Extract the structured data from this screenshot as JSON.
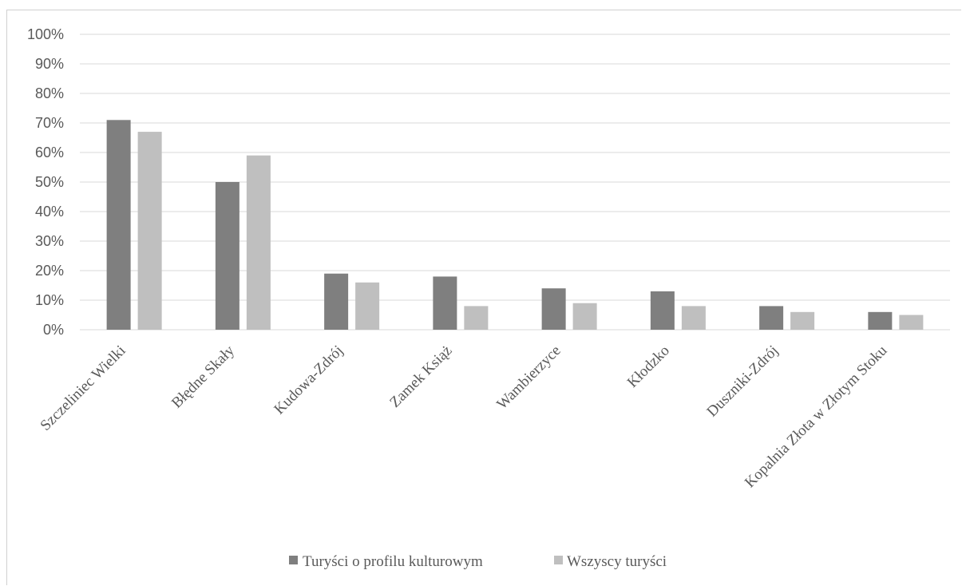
{
  "chart_data": {
    "type": "bar",
    "categories": [
      "Szczeliniec Wielki",
      "Błędne Skały",
      "Kudowa-Zdrój",
      "Zamek Książ",
      "Wambierzyce",
      "Kłodzko",
      "Duszniki-Zdrój",
      "Kopalnia Złota w Złotym Stoku"
    ],
    "series": [
      {
        "name": "Turyści o profilu kulturowym",
        "color": "#7f7f7f",
        "values": [
          71,
          50,
          19,
          18,
          14,
          13,
          8,
          6
        ]
      },
      {
        "name": "Wszyscy turyści",
        "color": "#bfbfbf",
        "values": [
          67,
          59,
          16,
          8,
          9,
          8,
          6,
          5
        ]
      }
    ],
    "y_ticks": [
      "0%",
      "10%",
      "20%",
      "30%",
      "40%",
      "50%",
      "60%",
      "70%",
      "80%",
      "90%",
      "100%"
    ],
    "ylim": [
      0,
      100
    ],
    "grid": true,
    "legend_position": "bottom",
    "gridline_color": "#d9d9d9"
  }
}
